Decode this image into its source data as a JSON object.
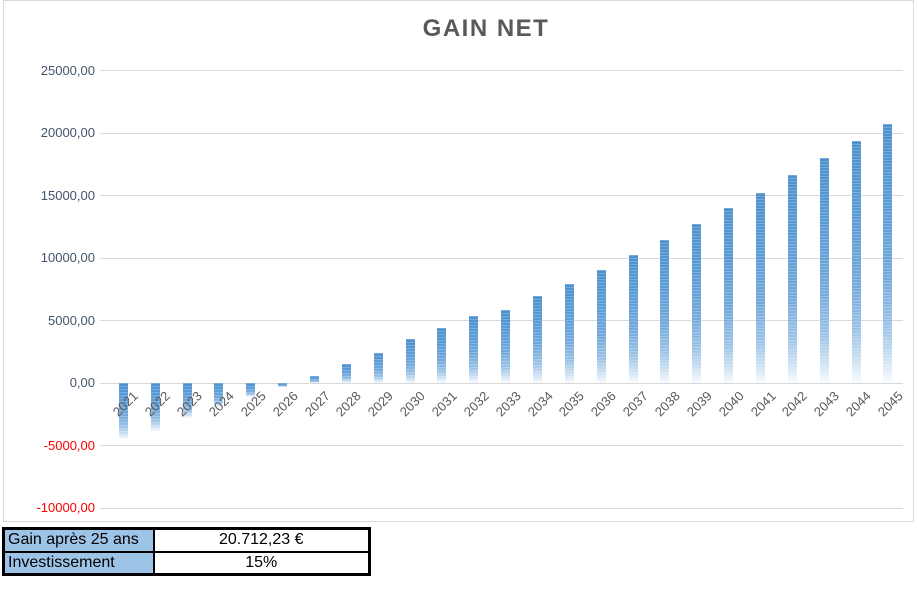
{
  "chart_data": {
    "type": "bar",
    "title": "GAIN NET",
    "categories": [
      "2021",
      "2022",
      "2023",
      "2024",
      "2025",
      "2026",
      "2027",
      "2028",
      "2029",
      "2030",
      "2031",
      "2032",
      "2033",
      "2034",
      "2035",
      "2036",
      "2037",
      "2038",
      "2039",
      "2040",
      "2041",
      "2042",
      "2043",
      "2044",
      "2045"
    ],
    "values": [
      -4500,
      -3870,
      -2800,
      -1950,
      -1150,
      -330,
      550,
      1480,
      2380,
      3460,
      4340,
      5330,
      5780,
      6900,
      7900,
      9000,
      10220,
      11430,
      12680,
      13950,
      15150,
      16570,
      17950,
      19330,
      20712.23
    ],
    "xlabel": "",
    "ylabel": "",
    "ylim": [
      -10000,
      25000
    ],
    "ytick_step": 5000,
    "grid": true,
    "legend_position": "none",
    "bar_color": "#5B9BD5",
    "bar_fade_color": "#EAF2FA",
    "yticks": [
      {
        "value": 25000,
        "label": "25000,00",
        "color": "#44546A"
      },
      {
        "value": 20000,
        "label": "20000,00",
        "color": "#44546A"
      },
      {
        "value": 15000,
        "label": "15000,00",
        "color": "#44546A"
      },
      {
        "value": 10000,
        "label": "10000,00",
        "color": "#44546A"
      },
      {
        "value": 5000,
        "label": "5000,00",
        "color": "#44546A"
      },
      {
        "value": 0,
        "label": "0,00",
        "color": "#44546A"
      },
      {
        "value": -5000,
        "label": "-5000,00",
        "color": "#FF0000"
      },
      {
        "value": -10000,
        "label": "-10000,00",
        "color": "#FF0000"
      }
    ]
  },
  "summary_table": {
    "rows": [
      {
        "label": "Gain après 25 ans",
        "value": "20.712,23 €"
      },
      {
        "label": "Investissement",
        "value": "15%"
      }
    ]
  },
  "colors": {
    "title": "#595959",
    "gridline": "#D9D9D9",
    "chart_border": "#D9D9D9",
    "axis_label": "#44546A",
    "axis_label_negative": "#FF0000",
    "category_label": "#595959",
    "table_header_bg": "#9DC3E6",
    "table_border": "#000000"
  }
}
